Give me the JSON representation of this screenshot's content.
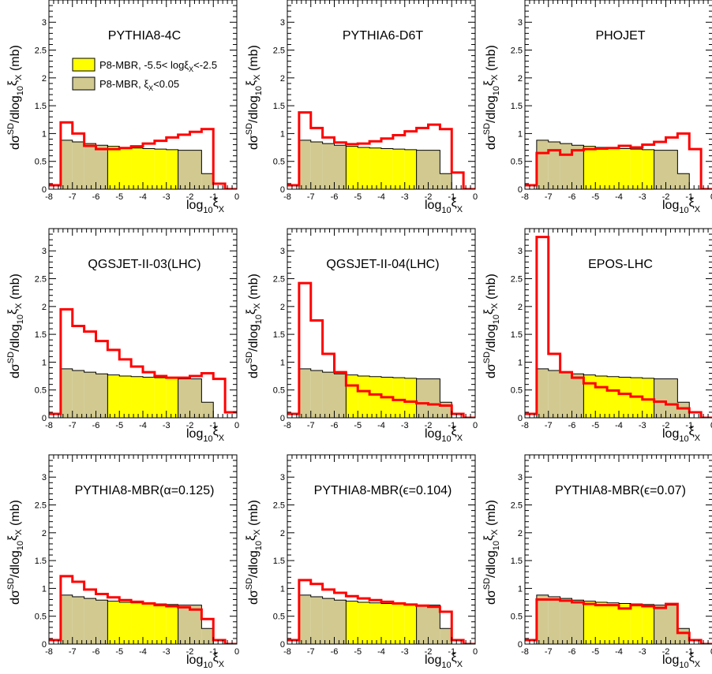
{
  "axis": {
    "x_tick_labels": [
      "-8",
      "-7",
      "-6",
      "-5",
      "-4",
      "-3",
      "-2",
      "-1",
      "0"
    ],
    "y_tick_labels": [
      "0",
      "0.5",
      "1",
      "1.5",
      "2",
      "2.5",
      "3"
    ],
    "xlabel": {
      "main": "log",
      "sub": "10",
      "rest": "ξ",
      "sub2": "X"
    },
    "ylabel": {
      "a": "dσ",
      "sup": "SD",
      "b": "/dlog",
      "sub": "10",
      "c": "ξ",
      "sub2": "X",
      "d": " (mb)"
    }
  },
  "legend": {
    "entry1": "P8-MBR, -5.5< logξ",
    "entry1_sub": "X",
    "entry1_tail": "<-2.5",
    "entry2": "P8-MBR,    ξ",
    "entry2_sub": "X",
    "entry2_tail": "<0.05"
  },
  "colors": {
    "red": "#ff0000",
    "yellow": "#ffff00",
    "olive": "#d1c990",
    "frame": "#000000"
  },
  "chart_data": [
    {
      "type": "bar",
      "title": "PYTHIA8-4C",
      "xlim": [
        -8,
        0
      ],
      "ylim": [
        0,
        3.4
      ],
      "bin_edges": [
        -8.0,
        -7.5,
        -7.0,
        -6.5,
        -6.0,
        -5.5,
        -5.0,
        -4.5,
        -4.0,
        -3.5,
        -3.0,
        -2.5,
        -2.0,
        -1.5,
        -1.0,
        -0.5,
        0.0
      ],
      "series": [
        {
          "values": [
            0.0,
            0.88,
            0.85,
            0.82,
            0.79,
            0.77,
            0.75,
            0.74,
            0.73,
            0.72,
            0.71,
            0.7,
            0.7,
            0.28,
            0.0,
            0.0
          ]
        },
        {
          "values": [
            0.07,
            1.2,
            1.0,
            0.78,
            0.72,
            0.72,
            0.74,
            0.77,
            0.82,
            0.87,
            0.93,
            0.98,
            1.03,
            1.08,
            0.1,
            0.0
          ]
        }
      ]
    },
    {
      "type": "bar",
      "title": "PYTHIA6-D6T",
      "xlim": [
        -8,
        0
      ],
      "ylim": [
        0,
        3.4
      ],
      "bin_edges": [
        -8.0,
        -7.5,
        -7.0,
        -6.5,
        -6.0,
        -5.5,
        -5.0,
        -4.5,
        -4.0,
        -3.5,
        -3.0,
        -2.5,
        -2.0,
        -1.5,
        -1.0,
        -0.5,
        0.0
      ],
      "series": [
        {
          "values": [
            0.0,
            0.88,
            0.85,
            0.82,
            0.79,
            0.77,
            0.75,
            0.74,
            0.73,
            0.72,
            0.71,
            0.7,
            0.7,
            0.28,
            0.0,
            0.0
          ]
        },
        {
          "values": [
            0.07,
            1.38,
            1.1,
            0.93,
            0.84,
            0.81,
            0.82,
            0.86,
            0.91,
            0.97,
            1.04,
            1.1,
            1.16,
            1.08,
            0.3,
            0.0
          ]
        }
      ]
    },
    {
      "type": "bar",
      "title": "PHOJET",
      "xlim": [
        -8,
        0
      ],
      "ylim": [
        0,
        3.4
      ],
      "bin_edges": [
        -8.0,
        -7.5,
        -7.0,
        -6.5,
        -6.0,
        -5.5,
        -5.0,
        -4.5,
        -4.0,
        -3.5,
        -3.0,
        -2.5,
        -2.0,
        -1.5,
        -1.0,
        -0.5,
        0.0
      ],
      "series": [
        {
          "values": [
            0.0,
            0.88,
            0.85,
            0.82,
            0.79,
            0.77,
            0.75,
            0.74,
            0.73,
            0.72,
            0.71,
            0.7,
            0.7,
            0.28,
            0.0,
            0.0
          ]
        },
        {
          "values": [
            0.07,
            0.65,
            0.7,
            0.62,
            0.7,
            0.72,
            0.73,
            0.74,
            0.78,
            0.75,
            0.8,
            0.85,
            0.93,
            1.0,
            0.72,
            0.0
          ]
        }
      ]
    },
    {
      "type": "bar",
      "title": "QGSJET-II-03(LHC)",
      "xlim": [
        -8,
        0
      ],
      "ylim": [
        0,
        3.4
      ],
      "bin_edges": [
        -8.0,
        -7.5,
        -7.0,
        -6.5,
        -6.0,
        -5.5,
        -5.0,
        -4.5,
        -4.0,
        -3.5,
        -3.0,
        -2.5,
        -2.0,
        -1.5,
        -1.0,
        -0.5,
        0.0
      ],
      "series": [
        {
          "values": [
            0.0,
            0.88,
            0.85,
            0.82,
            0.79,
            0.77,
            0.75,
            0.74,
            0.73,
            0.72,
            0.71,
            0.7,
            0.7,
            0.28,
            0.0,
            0.0
          ]
        },
        {
          "values": [
            0.07,
            1.95,
            1.65,
            1.55,
            1.38,
            1.22,
            1.05,
            0.92,
            0.82,
            0.75,
            0.72,
            0.72,
            0.75,
            0.8,
            0.7,
            0.1
          ]
        }
      ]
    },
    {
      "type": "bar",
      "title": "QGSJET-II-04(LHC)",
      "xlim": [
        -8,
        0
      ],
      "ylim": [
        0,
        3.4
      ],
      "bin_edges": [
        -8.0,
        -7.5,
        -7.0,
        -6.5,
        -6.0,
        -5.5,
        -5.0,
        -4.5,
        -4.0,
        -3.5,
        -3.0,
        -2.5,
        -2.0,
        -1.5,
        -1.0,
        -0.5,
        0.0
      ],
      "series": [
        {
          "values": [
            0.0,
            0.88,
            0.85,
            0.82,
            0.79,
            0.77,
            0.75,
            0.74,
            0.73,
            0.72,
            0.71,
            0.7,
            0.7,
            0.28,
            0.0,
            0.0
          ]
        },
        {
          "values": [
            0.07,
            2.42,
            1.75,
            1.15,
            0.82,
            0.58,
            0.48,
            0.42,
            0.37,
            0.32,
            0.29,
            0.26,
            0.24,
            0.22,
            0.07,
            0.0
          ]
        }
      ]
    },
    {
      "type": "bar",
      "title": "EPOS-LHC",
      "xlim": [
        -8,
        0
      ],
      "ylim": [
        0,
        3.4
      ],
      "bin_edges": [
        -8.0,
        -7.5,
        -7.0,
        -6.5,
        -6.0,
        -5.5,
        -5.0,
        -4.5,
        -4.0,
        -3.5,
        -3.0,
        -2.5,
        -2.0,
        -1.5,
        -1.0,
        -0.5,
        0.0
      ],
      "series": [
        {
          "values": [
            0.07,
            3.25,
            1.15,
            0.82,
            0.72,
            0.62,
            0.55,
            0.49,
            0.43,
            0.38,
            0.33,
            0.29,
            0.24,
            0.17,
            0.1,
            0.0
          ]
        },
        {
          "values": [
            0.0,
            0.88,
            0.85,
            0.82,
            0.79,
            0.77,
            0.75,
            0.74,
            0.73,
            0.72,
            0.71,
            0.7,
            0.7,
            0.28,
            0.0,
            0.0
          ]
        }
      ]
    },
    {
      "type": "bar",
      "title": "PYTHIA8-MBR(α=0.125)",
      "xlim": [
        -8,
        0
      ],
      "ylim": [
        0,
        3.4
      ],
      "bin_edges": [
        -8.0,
        -7.5,
        -7.0,
        -6.5,
        -6.0,
        -5.5,
        -5.0,
        -4.5,
        -4.0,
        -3.5,
        -3.0,
        -2.5,
        -2.0,
        -1.5,
        -1.0,
        -0.5,
        0.0
      ],
      "series": [
        {
          "values": [
            0.0,
            0.88,
            0.85,
            0.82,
            0.79,
            0.77,
            0.75,
            0.74,
            0.73,
            0.72,
            0.71,
            0.7,
            0.7,
            0.28,
            0.0,
            0.0
          ]
        },
        {
          "values": [
            0.07,
            1.22,
            1.12,
            0.98,
            0.9,
            0.84,
            0.79,
            0.76,
            0.73,
            0.7,
            0.68,
            0.66,
            0.62,
            0.45,
            0.07,
            0.0
          ]
        }
      ]
    },
    {
      "type": "bar",
      "title": "PYTHIA8-MBR(ϵ=0.104)",
      "xlim": [
        -8,
        0
      ],
      "ylim": [
        0,
        3.4
      ],
      "bin_edges": [
        -8.0,
        -7.5,
        -7.0,
        -6.5,
        -6.0,
        -5.5,
        -5.0,
        -4.5,
        -4.0,
        -3.5,
        -3.0,
        -2.5,
        -2.0,
        -1.5,
        -1.0,
        -0.5,
        0.0
      ],
      "series": [
        {
          "values": [
            0.0,
            0.88,
            0.85,
            0.82,
            0.79,
            0.77,
            0.75,
            0.74,
            0.73,
            0.72,
            0.71,
            0.7,
            0.7,
            0.28,
            0.0,
            0.0
          ]
        },
        {
          "values": [
            0.07,
            1.15,
            1.08,
            0.98,
            0.92,
            0.86,
            0.82,
            0.79,
            0.76,
            0.73,
            0.71,
            0.69,
            0.67,
            0.58,
            0.07,
            0.0
          ]
        }
      ]
    },
    {
      "type": "bar",
      "title": "PYTHIA8-MBR(ϵ=0.07)",
      "xlim": [
        -8,
        0
      ],
      "ylim": [
        0,
        3.4
      ],
      "bin_edges": [
        -8.0,
        -7.5,
        -7.0,
        -6.5,
        -6.0,
        -5.5,
        -5.0,
        -4.5,
        -4.0,
        -3.5,
        -3.0,
        -2.5,
        -2.0,
        -1.5,
        -1.0,
        -0.5,
        0.0
      ],
      "series": [
        {
          "values": [
            0.0,
            0.88,
            0.85,
            0.82,
            0.79,
            0.77,
            0.75,
            0.74,
            0.73,
            0.72,
            0.71,
            0.7,
            0.7,
            0.28,
            0.0,
            0.0
          ]
        },
        {
          "values": [
            0.07,
            0.8,
            0.8,
            0.78,
            0.75,
            0.72,
            0.7,
            0.7,
            0.64,
            0.7,
            0.68,
            0.65,
            0.72,
            0.2,
            0.07,
            0.0
          ]
        }
      ]
    }
  ]
}
